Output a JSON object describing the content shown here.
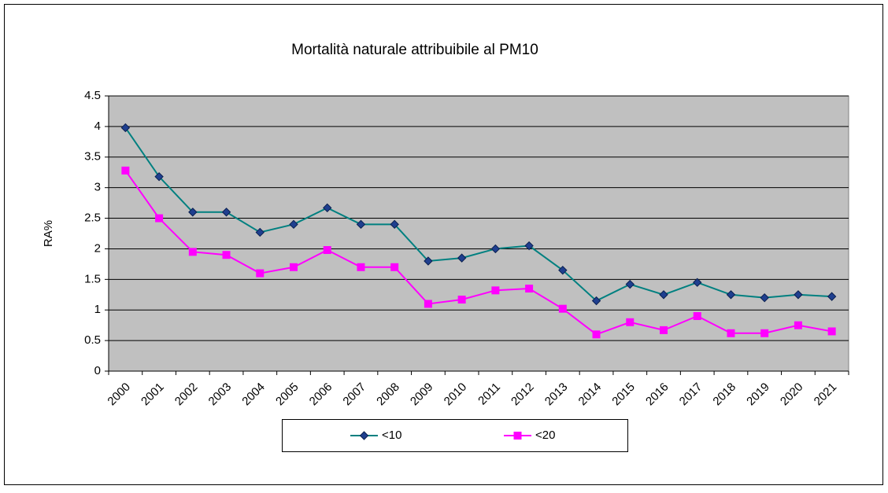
{
  "chart_data": {
    "type": "line",
    "title": "Mortalità naturale attribuibile al PM10",
    "y_label": "RA%",
    "categories": [
      "2000",
      "2001",
      "2002",
      "2003",
      "2004",
      "2005",
      "2006",
      "2007",
      "2008",
      "2009",
      "2010",
      "2011",
      "2012",
      "2013",
      "2014",
      "2015",
      "2016",
      "2017",
      "2018",
      "2019",
      "2020",
      "2021"
    ],
    "series": [
      {
        "name": "<10",
        "color": "#008080",
        "marker": "diamond",
        "marker_color": "#1f3f8f",
        "values": [
          3.98,
          3.18,
          2.6,
          2.6,
          2.27,
          2.4,
          2.67,
          2.4,
          2.4,
          1.8,
          1.85,
          2.0,
          2.05,
          1.65,
          1.15,
          1.42,
          1.25,
          1.45,
          1.25,
          1.2,
          1.25,
          1.22
        ]
      },
      {
        "name": "<20",
        "color": "#ff00ff",
        "marker": "square",
        "marker_color": "#ff00ff",
        "values": [
          3.28,
          2.5,
          1.95,
          1.9,
          1.6,
          1.7,
          1.98,
          1.7,
          1.7,
          1.1,
          1.17,
          1.32,
          1.35,
          1.02,
          0.6,
          0.8,
          0.67,
          0.9,
          0.62,
          0.62,
          0.75,
          0.65
        ]
      }
    ],
    "ylim": [
      0,
      4.5
    ],
    "yticks": [
      0,
      0.5,
      1,
      1.5,
      2,
      2.5,
      3,
      3.5,
      4,
      4.5
    ],
    "grid": true,
    "legend": "bottom"
  }
}
